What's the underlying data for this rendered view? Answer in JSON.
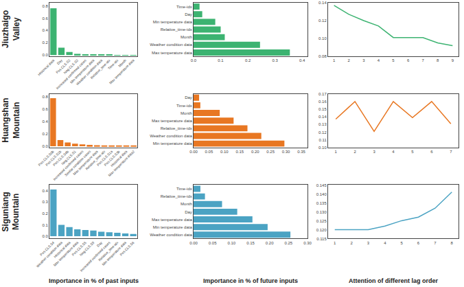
{
  "chart_data": [
    {
      "type": "bar",
      "categories": [
        "Historical data",
        "Day",
        "Pos.CLS.S2",
        "Neg.CLS.S2",
        "Increased confirmed cases",
        "Min temperature data",
        "Weather condition data",
        "Relative_time-idx",
        "Time-idx",
        "Month",
        "Max temperature data"
      ],
      "values": [
        0.76,
        0.12,
        0.05,
        0.02,
        0.01,
        0.005,
        0.004,
        0.003,
        0.002,
        0.001,
        0.001
      ],
      "color": "#3CB371",
      "ylim": [
        -0.02,
        0.85
      ],
      "yticks": [
        {
          "value": 0,
          "label": "0.0"
        },
        0.2,
        0.4,
        0.6,
        0.8
      ],
      "grid": false,
      "ylabel": "Jiuzhaigo\nValley"
    },
    {
      "type": "bar",
      "orientation": "horizontal",
      "categories": [
        "Time-idx",
        "Day",
        "Min temperature data",
        "Relative_time-idx",
        "Month",
        "Weather condition data",
        "Max temperature data"
      ],
      "values": [
        0.022,
        0.032,
        0.08,
        0.1,
        0.115,
        0.245,
        0.355
      ],
      "color": "#3CB371",
      "xlim": [
        0,
        0.42
      ],
      "xticks": [
        {
          "value": 0,
          "label": "0.0"
        },
        0.1,
        0.2,
        0.3,
        0.4
      ],
      "grid": false
    },
    {
      "type": "line",
      "x": [
        1,
        2,
        3,
        4,
        5,
        6,
        7,
        8,
        9
      ],
      "values": [
        0.137,
        0.127,
        0.12,
        0.114,
        0.101,
        0.101,
        0.101,
        0.095,
        0.092
      ],
      "color": "#3CB371",
      "xlim": [
        0.6,
        9.4
      ],
      "xticks": [
        1,
        2,
        3,
        4,
        5,
        6,
        7,
        8,
        9
      ],
      "ylim": [
        0.08,
        0.14
      ],
      "yticks": [
        0.08,
        {
          "value": 0.1,
          "label": "0.10"
        },
        0.12,
        0.14
      ],
      "grid": false
    },
    {
      "type": "bar",
      "categories": [
        "Pos.CLS.S0b",
        "Pos.CLS.S1b",
        "Pos.CLS.S4b",
        "Neg.CLS.S1",
        "Increased confirmed cases",
        "Similar condition cases",
        "Max temperature data",
        "Relative_time-idx",
        "Pos.CLS.S1a",
        "Pos.CLS.S3b",
        "Historical data",
        "Max temperature data2"
      ],
      "values": [
        0.78,
        0.1,
        0.06,
        0.04,
        0.03,
        0.02,
        0.015,
        0.012,
        0.01,
        0.008,
        0.006,
        0.004
      ],
      "color": "#E87722",
      "ylim": [
        -0.02,
        0.85
      ],
      "yticks": [
        {
          "value": 0,
          "label": "0.0"
        },
        0.2,
        0.4,
        0.6,
        0.8
      ],
      "grid": false,
      "ylabel": "Huangshan\nMountain"
    },
    {
      "type": "bar",
      "orientation": "horizontal",
      "categories": [
        "Day",
        "Time-idx",
        "Month",
        "Max temperature data",
        "Relative_time-idx",
        "Weather condition data",
        "Min temperature data"
      ],
      "values": [
        0.018,
        0.022,
        0.085,
        0.13,
        0.175,
        0.22,
        0.295
      ],
      "color": "#E87722",
      "xlim": [
        0,
        0.37
      ],
      "xticks": [
        {
          "value": 0,
          "label": "0.00"
        },
        0.05,
        {
          "value": 0.1,
          "label": "0.10"
        },
        0.15,
        {
          "value": 0.2,
          "label": "0.20"
        },
        0.25,
        {
          "value": 0.3,
          "label": "0.30"
        },
        0.35
      ],
      "grid": false
    },
    {
      "type": "line",
      "x": [
        1,
        2,
        3,
        4,
        5,
        6,
        7
      ],
      "values": [
        0.137,
        0.16,
        0.121,
        0.16,
        0.139,
        0.16,
        0.131
      ],
      "color": "#E87722",
      "xlim": [
        0.6,
        7.4
      ],
      "xticks": [
        1,
        2,
        3,
        4,
        5,
        6,
        7
      ],
      "ylim": [
        0.1,
        0.17
      ],
      "yticks": [
        {
          "value": 0.1,
          "label": "0.10"
        },
        0.11,
        0.12,
        0.13,
        0.14,
        0.15,
        0.16,
        0.17
      ],
      "grid": false
    },
    {
      "type": "bar",
      "categories": [
        "Pos.CLS.S4",
        "Weather condition data",
        "Historical data",
        "Max temperature data",
        "Pos.CLS.S5",
        "Neg.CLS.S9",
        "Day",
        "Increased confirmed cases",
        "Relative_time-idx",
        "Min temperature data",
        "Pos.CLS.S6"
      ],
      "values": [
        0.41,
        0.1,
        0.08,
        0.06,
        0.055,
        0.05,
        0.04,
        0.035,
        0.03,
        0.025,
        0.02
      ],
      "color": "#4BA3C3",
      "ylim": [
        -0.02,
        0.45
      ],
      "yticks": [
        {
          "value": 0,
          "label": "0.0"
        },
        0.1,
        0.2,
        0.3,
        0.4
      ],
      "grid": false,
      "ylabel": "Siguniang\nMountain",
      "xlabel": "Importance in % of past inputs"
    },
    {
      "type": "bar",
      "orientation": "horizontal",
      "categories": [
        "Time-idx",
        "Relative_time-idx",
        "Month",
        "Day",
        "Max temperature data",
        "Min temperature data",
        "Weather condition data"
      ],
      "values": [
        0.018,
        0.03,
        0.075,
        0.115,
        0.155,
        0.195,
        0.255
      ],
      "color": "#4BA3C3",
      "xlim": [
        0,
        0.3
      ],
      "xticks": [
        {
          "value": 0,
          "label": "0.00"
        },
        0.05,
        {
          "value": 0.1,
          "label": "0.10"
        },
        0.15,
        {
          "value": 0.2,
          "label": "0.20"
        },
        0.25,
        {
          "value": 0.3,
          "label": "0.30"
        }
      ],
      "grid": false,
      "xlabel": "Importance in % of future inputs"
    },
    {
      "type": "line",
      "x": [
        1,
        2,
        3,
        4,
        5,
        6,
        7,
        8
      ],
      "values": [
        0.12,
        0.12,
        0.12,
        0.122,
        0.125,
        0.127,
        0.132,
        0.141
      ],
      "color": "#4BA3C3",
      "xlim": [
        0.6,
        8.4
      ],
      "xticks": [
        1,
        2,
        3,
        4,
        5,
        6,
        7,
        8
      ],
      "ylim": [
        0.115,
        0.145
      ],
      "yticks": [
        0.115,
        {
          "value": 0.12,
          "label": "0.120"
        },
        0.125,
        {
          "value": 0.13,
          "label": "0.130"
        },
        0.135,
        {
          "value": 0.14,
          "label": "0.140"
        },
        0.145
      ],
      "grid": false,
      "xlabel": "Attention of different lag order"
    }
  ]
}
